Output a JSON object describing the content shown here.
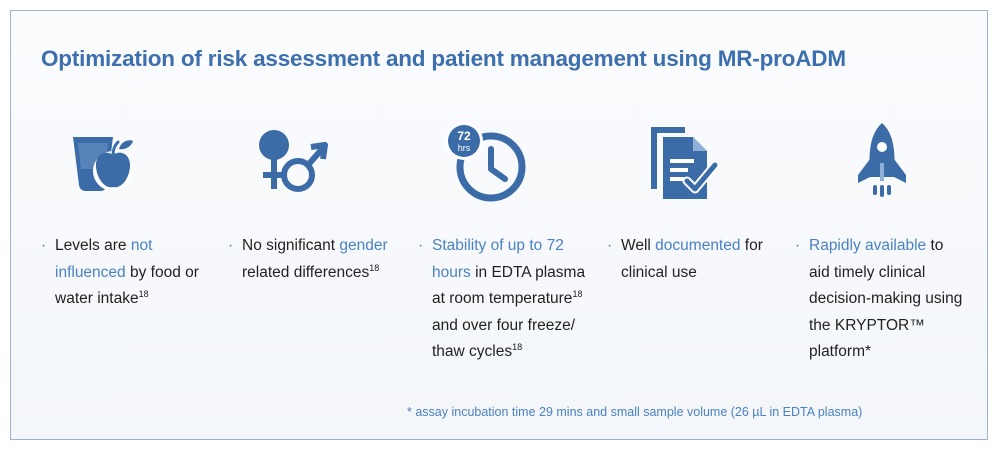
{
  "title": "Optimization of risk assessment and patient management using MR-proADM",
  "bullet_symbol": "·",
  "colors": {
    "accent": "#4a82c3",
    "title": "#3d6fae",
    "icon": "#3b6ca8",
    "text": "#222222",
    "border": "#9fb3cf"
  },
  "features": [
    {
      "icon": "water-glass-apple-icon",
      "lines": [
        {
          "a": "Levels are ",
          "hl": "not"
        },
        {
          "hl": "influenced",
          "b": " by food or"
        },
        {
          "a": "water intake",
          "sup": "18"
        }
      ]
    },
    {
      "icon": "female-male-symbols-icon",
      "lines": [
        {
          "a": "No significant ",
          "hl": "gender"
        },
        {
          "a": "related differences",
          "sup": "18"
        }
      ]
    },
    {
      "icon": "clock-72hrs-icon",
      "badge_top": "72",
      "badge_bottom": "hrs",
      "lines": [
        {
          "hl": "Stability of up to 72"
        },
        {
          "hl": "hours",
          "b": " in EDTA plasma"
        },
        {
          "a": "at room temperature",
          "sup": "18"
        },
        {
          "a": "and over four freeze/"
        },
        {
          "a": "thaw cycles",
          "sup": "18"
        }
      ]
    },
    {
      "icon": "documents-checkmark-icon",
      "lines": [
        {
          "a": "Well ",
          "hl": "documented",
          "b": " for"
        },
        {
          "a": "clinical use"
        }
      ]
    },
    {
      "icon": "rocket-icon",
      "lines": [
        {
          "hl": "Rapidly available",
          "b": " to"
        },
        {
          "a": "aid timely clinical"
        },
        {
          "a": "decision-making using"
        },
        {
          "a": "the KRYPTOR™"
        },
        {
          "a": "platform*"
        }
      ]
    }
  ],
  "footnote": "* assay incubation time 29 mins and small sample volume (26 µL in EDTA plasma)"
}
